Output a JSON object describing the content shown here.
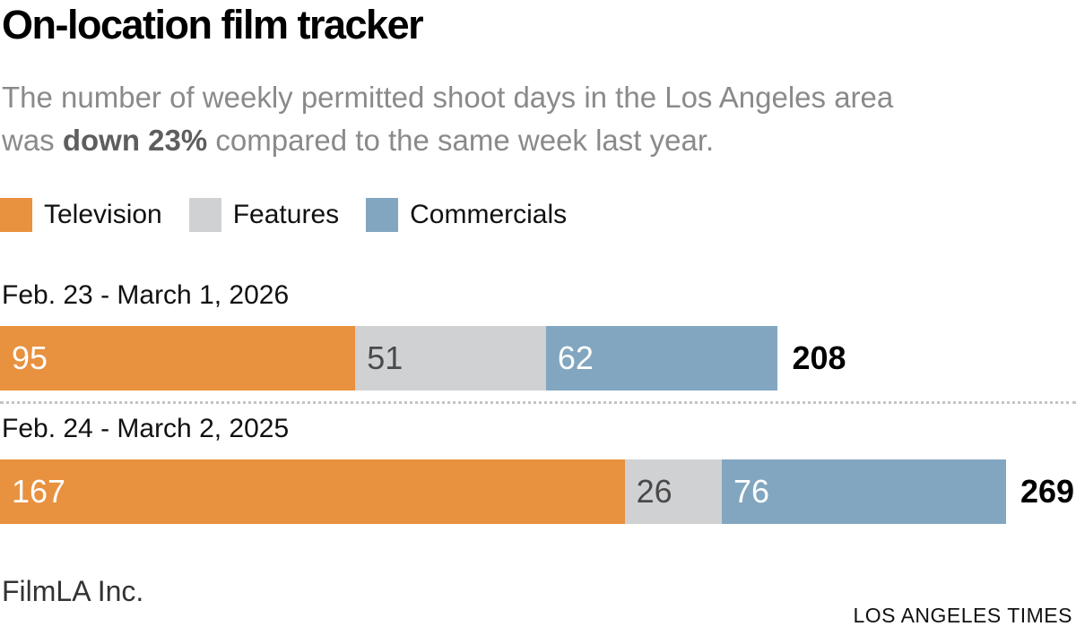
{
  "header": {
    "title": "On-location film tracker",
    "subtitle": {
      "line1": "The number of weekly permitted shoot days in the Los Angeles area",
      "line2_before_bold": "was ",
      "line2_bold": "down 23%",
      "line2_after_bold": " compared to the same week last year."
    }
  },
  "legend": {
    "items": [
      {
        "label": "Television",
        "color": "#E8913F"
      },
      {
        "label": "Features",
        "color": "#D0D1D3"
      },
      {
        "label": "Commercials",
        "color": "#82A6C0"
      }
    ]
  },
  "chart_data": {
    "type": "bar",
    "orientation": "horizontal",
    "stacked": true,
    "title": "On-location film tracker",
    "categories": [
      "Feb. 23 - March 1, 2026",
      "Feb. 24 - March 2, 2025"
    ],
    "series": [
      {
        "name": "Television",
        "color": "#E8913F",
        "label_color": "#FFFFFF",
        "values": [
          95,
          167
        ]
      },
      {
        "name": "Features",
        "color": "#D0D1D3",
        "label_color": "#4A4A4A",
        "values": [
          51,
          26
        ]
      },
      {
        "name": "Commercials",
        "color": "#82A6C0",
        "label_color": "#FFFFFF",
        "values": [
          62,
          76
        ]
      }
    ],
    "totals": [
      208,
      269
    ],
    "xlim": [
      0,
      269
    ],
    "grid": false,
    "legend_position": "top",
    "value_labels": "inside-start",
    "total_labels": "after-bar-bold"
  },
  "colors": {
    "title": "#000000",
    "subtitle": "#8A8A8A",
    "subtitle_bold": "#5E5E5E",
    "category_label": "#111111",
    "total_label": "#000000",
    "divider_dots": "#C4C4C4",
    "source": "#333333",
    "credit": "#111111"
  },
  "footer": {
    "source": "FilmLA Inc.",
    "credit": "LOS ANGELES TIMES"
  }
}
